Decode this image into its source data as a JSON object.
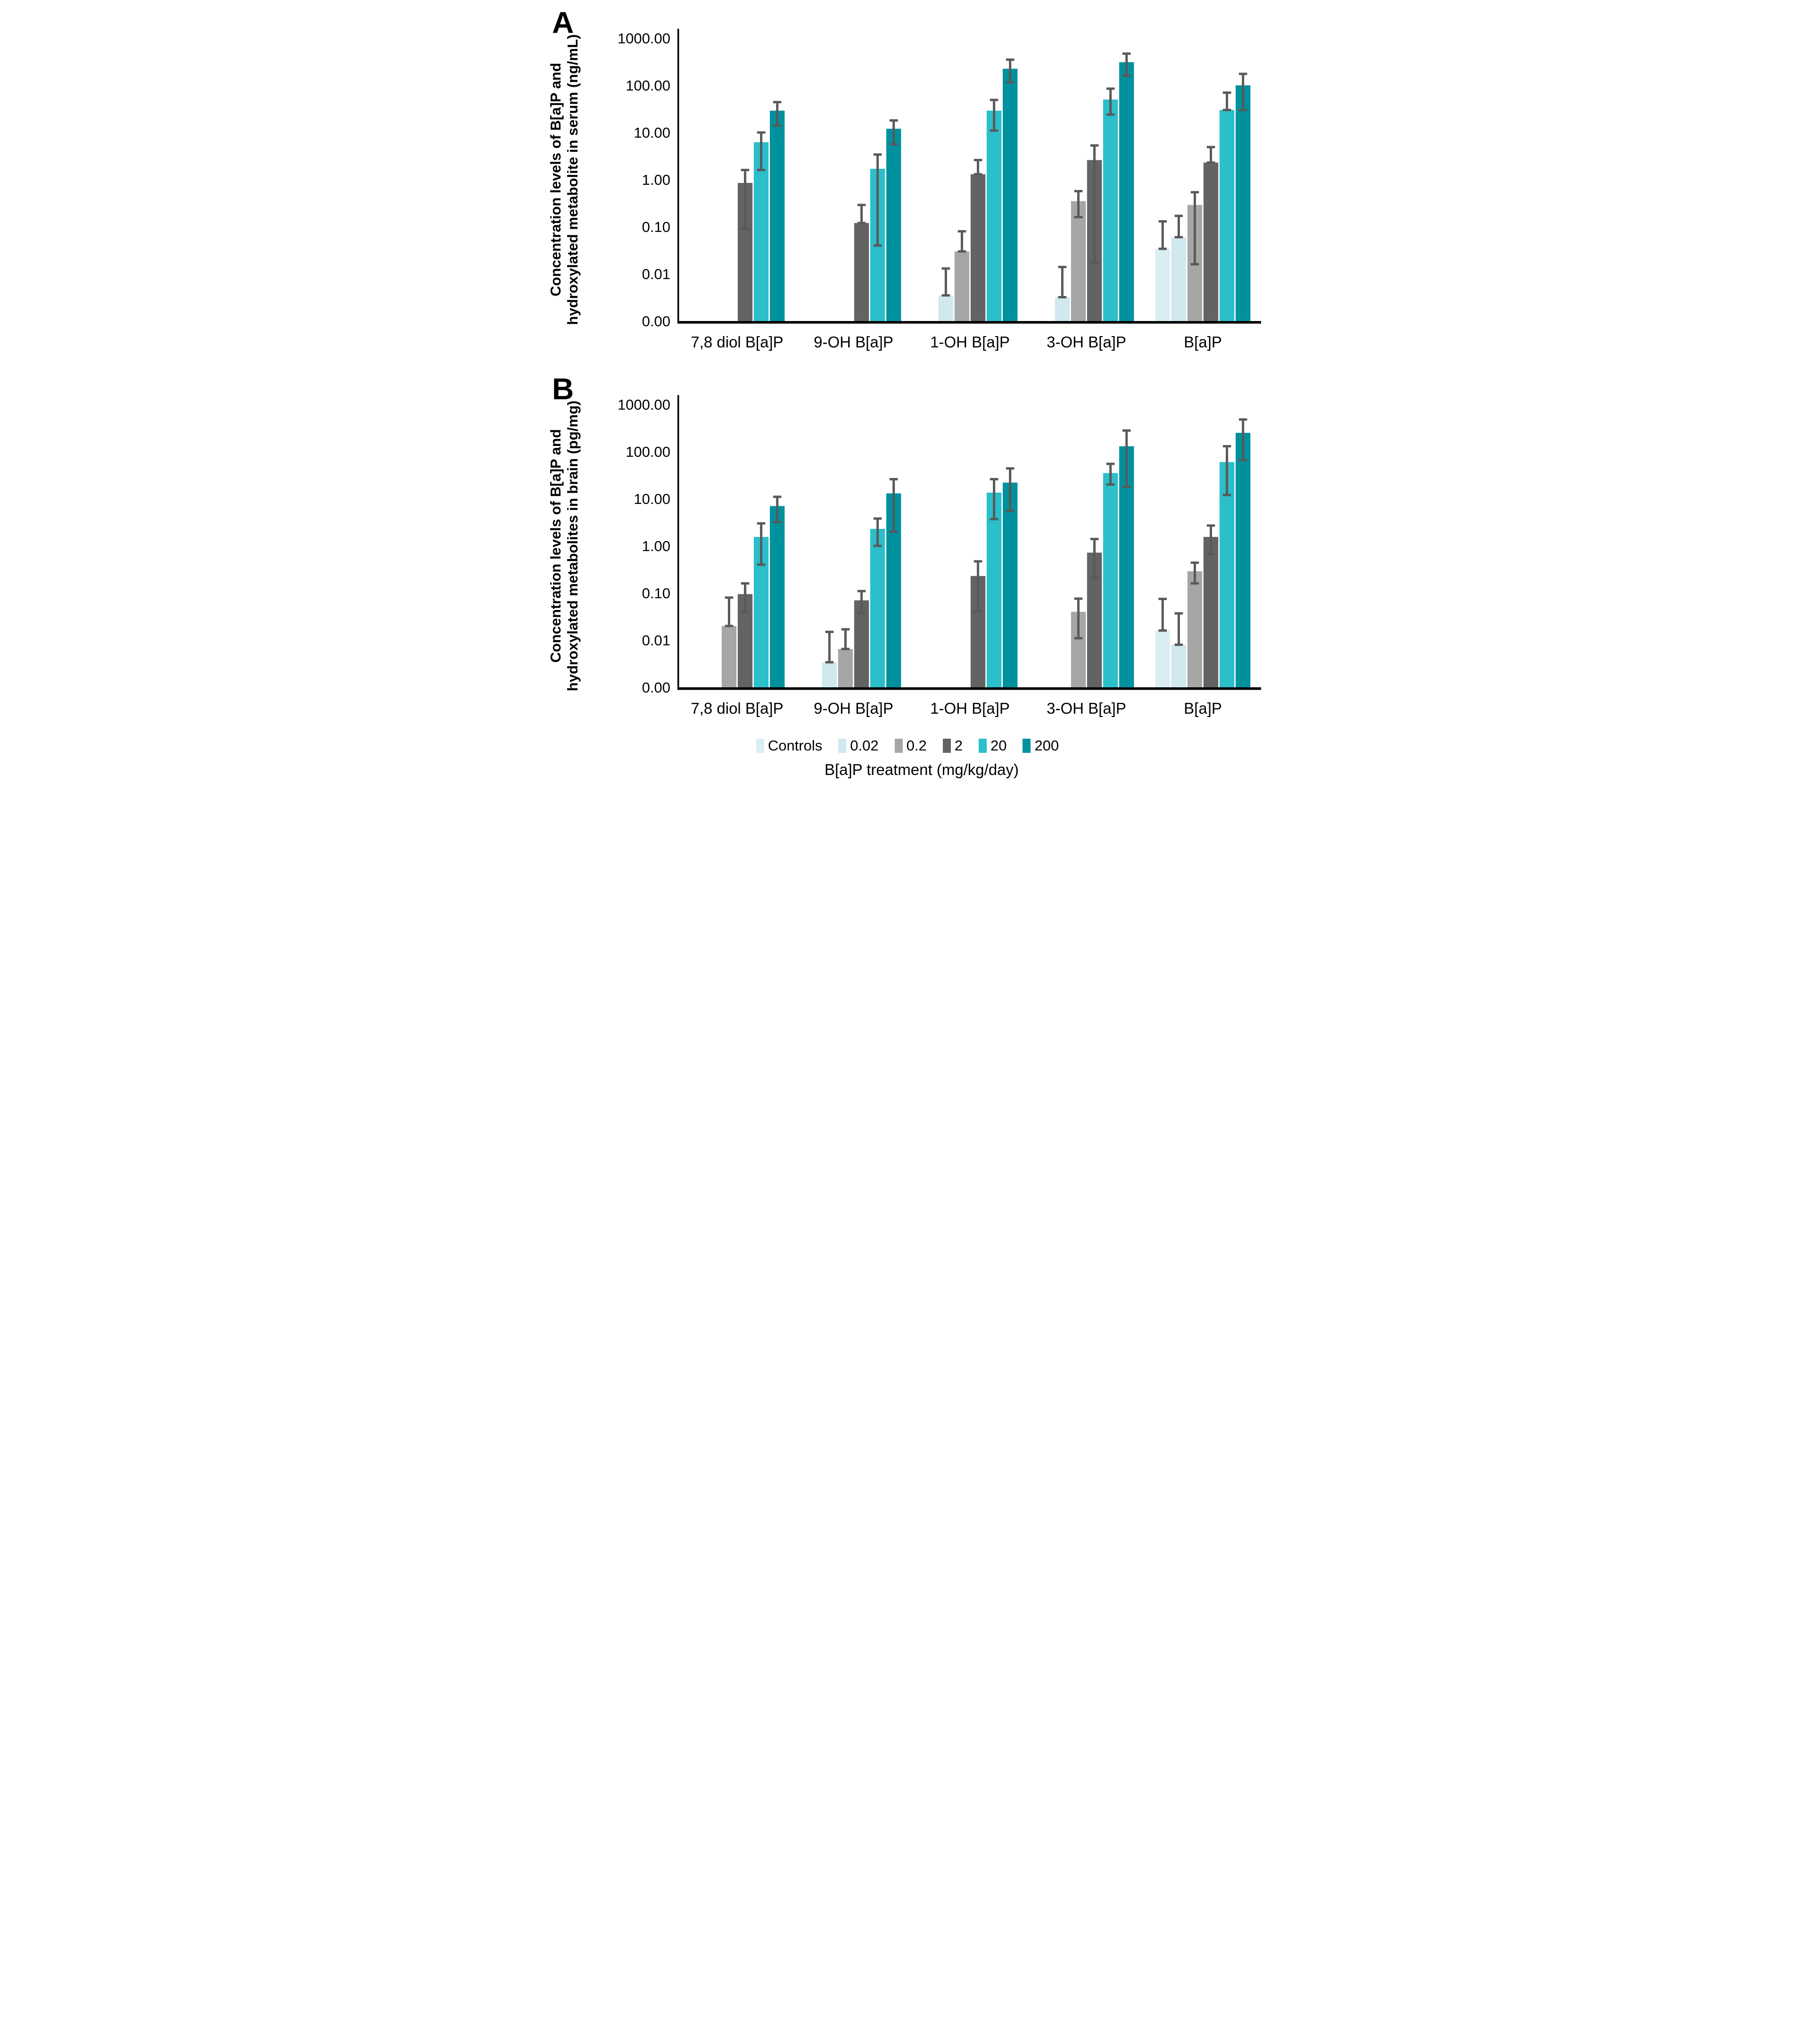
{
  "page_background": "#ffffff",
  "x_axis_title": "B[a]P treatment (mg/kg/day)",
  "legend": {
    "items": [
      {
        "label": "Controls",
        "color": "#daeef1"
      },
      {
        "label": "0.02",
        "color": "#cfe9ee"
      },
      {
        "label": "0.2",
        "color": "#a6a6a6"
      },
      {
        "label": "2",
        "color": "#636363"
      },
      {
        "label": "20",
        "color": "#2bbecb"
      },
      {
        "label": "200",
        "color": "#00919e"
      }
    ]
  },
  "error_bar_color": "#595959",
  "chart_data": [
    {
      "type": "bar",
      "panel_letter": "A",
      "yscale": "log",
      "ylim": [
        0.001,
        1000
      ],
      "ylabel_lines": [
        "Concentration levels of B[a]P and",
        "hydroxylated metabolite in serum (ng/mL)"
      ],
      "yticks": [
        "1000.00",
        "100.00",
        "10.00",
        "1.00",
        "0.10",
        "0.01",
        "0.00"
      ],
      "grid": false,
      "legend_position": "bottom-shared",
      "categories": [
        "7,8 diol B[a]P",
        "9-OH B[a]P",
        "1-OH B[a]P",
        "3-OH B[a]P",
        "B[a]P"
      ],
      "series": [
        {
          "name": "Controls",
          "color": "#daeef1",
          "values": [
            null,
            null,
            null,
            null,
            0.034
          ],
          "err_lo": [
            null,
            null,
            null,
            null,
            null
          ],
          "err_hi": [
            null,
            null,
            null,
            null,
            0.13
          ]
        },
        {
          "name": "0.02",
          "color": "#cfe9ee",
          "values": [
            null,
            null,
            0.0035,
            0.0032,
            0.06
          ],
          "err_lo": [
            null,
            null,
            null,
            null,
            null
          ],
          "err_hi": [
            null,
            null,
            0.013,
            0.014,
            0.17
          ]
        },
        {
          "name": "0.2",
          "color": "#a6a6a6",
          "values": [
            null,
            null,
            0.03,
            0.35,
            0.29
          ],
          "err_lo": [
            null,
            null,
            null,
            0.16,
            0.016
          ],
          "err_hi": [
            null,
            null,
            0.08,
            0.57,
            0.54
          ]
        },
        {
          "name": "2",
          "color": "#636363",
          "values": [
            0.85,
            0.12,
            1.3,
            2.6,
            2.3
          ],
          "err_lo": [
            0.09,
            null,
            null,
            0.017,
            null
          ],
          "err_hi": [
            1.6,
            0.29,
            2.6,
            5.3,
            4.9
          ]
        },
        {
          "name": "20",
          "color": "#2bbecb",
          "values": [
            6.2,
            1.7,
            29,
            50,
            30
          ],
          "err_lo": [
            1.6,
            0.04,
            11,
            24,
            null
          ],
          "err_hi": [
            10,
            3.4,
            49,
            85,
            70
          ]
        },
        {
          "name": "200",
          "color": "#00919e",
          "values": [
            29,
            12,
            225,
            310,
            100
          ],
          "err_lo": [
            14,
            5.6,
            115,
            160,
            30
          ],
          "err_hi": [
            44,
            18,
            350,
            470,
            175
          ]
        }
      ]
    },
    {
      "type": "bar",
      "panel_letter": "B",
      "yscale": "log",
      "ylim": [
        0.001,
        1000
      ],
      "ylabel_lines": [
        "Concentration levels of B[a]P and",
        "hydroxylated metabolites in brain (pg/mg)"
      ],
      "yticks": [
        "1000.00",
        "100.00",
        "10.00",
        "1.00",
        "0.10",
        "0.01",
        "0.00"
      ],
      "grid": false,
      "legend_position": "bottom-shared",
      "categories": [
        "7,8 diol B[a]P",
        "9-OH B[a]P",
        "1-OH B[a]P",
        "3-OH B[a]P",
        "B[a]P"
      ],
      "series": [
        {
          "name": "Controls",
          "color": "#daeef1",
          "values": [
            null,
            null,
            null,
            null,
            0.016
          ],
          "err_lo": [
            null,
            null,
            null,
            null,
            null
          ],
          "err_hi": [
            null,
            null,
            null,
            null,
            0.075
          ]
        },
        {
          "name": "0.02",
          "color": "#cfe9ee",
          "values": [
            null,
            0.0034,
            null,
            null,
            0.008
          ],
          "err_lo": [
            null,
            null,
            null,
            null,
            null
          ],
          "err_hi": [
            null,
            0.015,
            null,
            null,
            0.037
          ]
        },
        {
          "name": "0.2",
          "color": "#a6a6a6",
          "values": [
            0.02,
            0.0065,
            null,
            0.04,
            0.29
          ],
          "err_lo": [
            null,
            null,
            null,
            0.011,
            0.16
          ],
          "err_hi": [
            0.08,
            0.017,
            null,
            0.076,
            0.44
          ]
        },
        {
          "name": "2",
          "color": "#636363",
          "values": [
            0.095,
            0.07,
            0.23,
            0.72,
            1.55
          ],
          "err_lo": [
            0.039,
            0.037,
            0.041,
            0.21,
            0.66
          ],
          "err_hi": [
            0.16,
            0.11,
            0.47,
            1.4,
            2.7
          ]
        },
        {
          "name": "20",
          "color": "#2bbecb",
          "values": [
            1.55,
            2.3,
            13.5,
            35,
            60
          ],
          "err_lo": [
            0.4,
            1.0,
            3.7,
            20,
            12
          ],
          "err_hi": [
            3.0,
            3.8,
            26,
            55,
            130
          ]
        },
        {
          "name": "200",
          "color": "#00919e",
          "values": [
            7,
            13,
            22,
            130,
            250
          ],
          "err_lo": [
            3.2,
            2.0,
            5.5,
            18,
            66
          ],
          "err_hi": [
            11,
            26,
            44,
            280,
            480
          ]
        }
      ]
    }
  ]
}
